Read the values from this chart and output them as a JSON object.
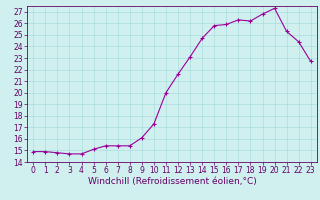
{
  "x": [
    0,
    1,
    2,
    3,
    4,
    5,
    6,
    7,
    8,
    9,
    10,
    11,
    12,
    13,
    14,
    15,
    16,
    17,
    18,
    19,
    20,
    21,
    22,
    23
  ],
  "y": [
    14.9,
    14.9,
    14.8,
    14.7,
    14.7,
    15.1,
    15.4,
    15.4,
    15.4,
    16.1,
    17.3,
    20.0,
    21.6,
    23.1,
    24.7,
    25.8,
    25.9,
    26.3,
    26.2,
    26.8,
    27.3,
    25.3,
    24.4,
    22.7
  ],
  "line_color": "#990099",
  "marker": "+",
  "marker_size": 3.5,
  "marker_lw": 0.8,
  "line_width": 0.8,
  "bg_color": "#d0f0f0",
  "grid_color": "#aadddd",
  "xlabel": "Windchill (Refroidissement éolien,°C)",
  "xlim": [
    -0.5,
    23.5
  ],
  "ylim": [
    14,
    27.5
  ],
  "yticks": [
    14,
    15,
    16,
    17,
    18,
    19,
    20,
    21,
    22,
    23,
    24,
    25,
    26,
    27
  ],
  "xticks": [
    0,
    1,
    2,
    3,
    4,
    5,
    6,
    7,
    8,
    9,
    10,
    11,
    12,
    13,
    14,
    15,
    16,
    17,
    18,
    19,
    20,
    21,
    22,
    23
  ],
  "xtick_labels": [
    "0",
    "1",
    "2",
    "3",
    "4",
    "5",
    "6",
    "7",
    "8",
    "9",
    "10",
    "11",
    "12",
    "13",
    "14",
    "15",
    "16",
    "17",
    "18",
    "19",
    "20",
    "21",
    "22",
    "23"
  ],
  "tick_color": "#660066",
  "tick_fontsize": 5.5,
  "xlabel_fontsize": 6.5,
  "border_color": "#660066",
  "grid_lw": 0.5
}
